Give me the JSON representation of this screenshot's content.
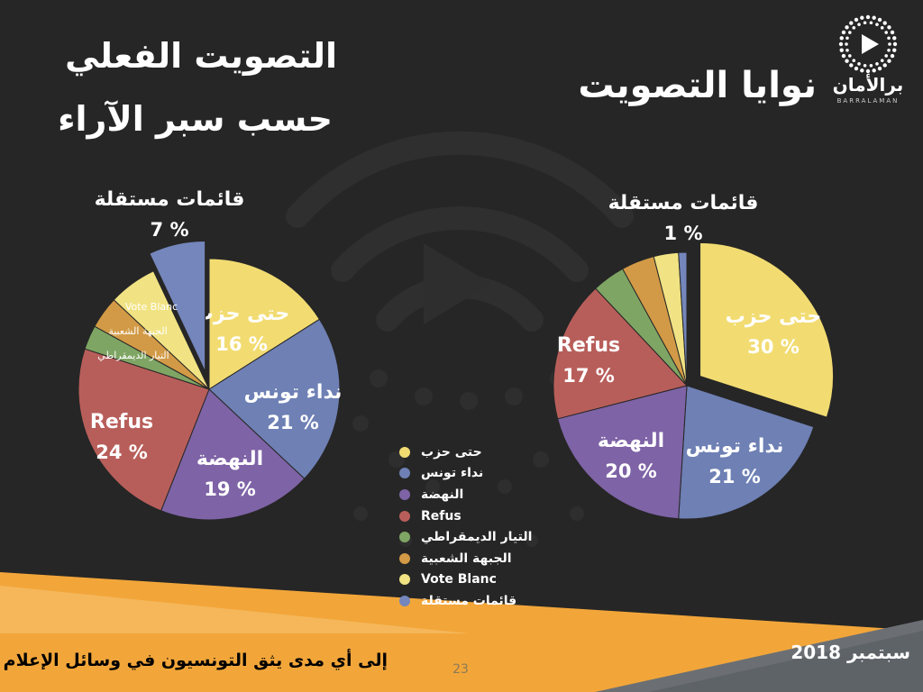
{
  "titles": {
    "left_line1": "التصويت الفعلي",
    "left_line2": "حسب سبر الآراء",
    "right": "نوايا التصويت"
  },
  "logo": {
    "name": "برالأمان",
    "sub": "BARRALAMAN"
  },
  "legend": [
    {
      "label": "حتى حزب",
      "color": "#f2dc72"
    },
    {
      "label": "نداء تونس",
      "color": "#6e80b4"
    },
    {
      "label": "النهضة",
      "color": "#7e63a6"
    },
    {
      "label": "Refus",
      "color": "#b85e5a"
    },
    {
      "label": "التيار الديمقراطي",
      "color": "#7fa564"
    },
    {
      "label": "الجبهة الشعبية",
      "color": "#d29a46"
    },
    {
      "label": "Vote Blanc",
      "color": "#f1e383"
    },
    {
      "label": "قائمات مستقلة",
      "color": "#7486bb"
    }
  ],
  "chart_data": [
    {
      "type": "pie",
      "title": "التصويت الفعلي حسب سبر الآراء",
      "slices": [
        {
          "name": "حتى حزب",
          "value": 16,
          "label": "16 %",
          "color": "#f2dc72"
        },
        {
          "name": "نداء تونس",
          "value": 21,
          "label": "21 %",
          "color": "#6e80b4"
        },
        {
          "name": "النهضة",
          "value": 19,
          "label": "19 %",
          "color": "#7e63a6"
        },
        {
          "name": "Refus",
          "value": 24,
          "label": "24 %",
          "color": "#b85e5a"
        },
        {
          "name": "التيار الديمقراطي",
          "value": 3,
          "label": "",
          "color": "#7fa564"
        },
        {
          "name": "الجبهة الشعبية",
          "value": 4,
          "label": "",
          "color": "#d29a46"
        },
        {
          "name": "Vote Blanc",
          "value": 6,
          "label": "",
          "color": "#f1e383"
        },
        {
          "name": "قائمات مستقلة",
          "value": 7,
          "label": "7 %",
          "color": "#7486bb"
        }
      ],
      "small_labels": [
        "Vote Blanc",
        "الجبهة الشعبية",
        "التيار الديمقراطي"
      ]
    },
    {
      "type": "pie",
      "title": "نوايا التصويت",
      "slices": [
        {
          "name": "حتى حزب",
          "value": 30,
          "label": "30 %",
          "color": "#f2dc72"
        },
        {
          "name": "نداء تونس",
          "value": 21,
          "label": "21 %",
          "color": "#6e80b4"
        },
        {
          "name": "النهضة",
          "value": 20,
          "label": "20 %",
          "color": "#7e63a6"
        },
        {
          "name": "Refus",
          "value": 17,
          "label": "17 %",
          "color": "#b85e5a"
        },
        {
          "name": "التيار الديمقراطي",
          "value": 4,
          "label": "",
          "color": "#7fa564"
        },
        {
          "name": "الجبهة الشعبية",
          "value": 4,
          "label": "",
          "color": "#d29a46"
        },
        {
          "name": "Vote Blanc",
          "value": 3,
          "label": "",
          "color": "#f1e383"
        },
        {
          "name": "قائمات مستقلة",
          "value": 1,
          "label": "1 %",
          "color": "#7486bb"
        }
      ]
    }
  ],
  "footer": {
    "question": "إلى أي مدى يثق التونسيون في وسائل الإعلام ؟",
    "date": "سبتمبر 2018",
    "page": "23"
  }
}
